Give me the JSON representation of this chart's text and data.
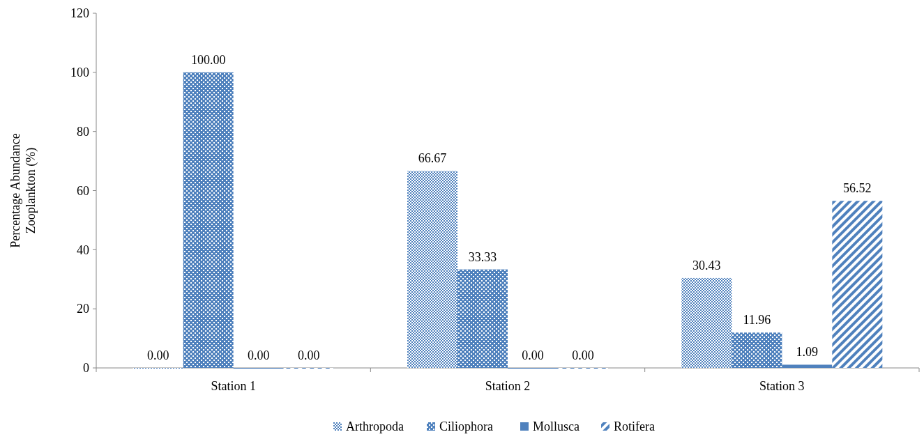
{
  "chart_data": {
    "type": "bar",
    "ylabel": "Percentage Abundance Zooplankton (%)",
    "categories": [
      "Station 1",
      "Station 2",
      "Station 3"
    ],
    "series": [
      {
        "name": "Arthropoda",
        "color": "#4f81bd",
        "values": [
          0,
          66.67,
          30.43
        ],
        "value_labels": [
          "0.00",
          "66.67",
          "30.43"
        ]
      },
      {
        "name": "Ciliophora",
        "color": "#4f81bd",
        "values": [
          100,
          33.33,
          11.96
        ],
        "value_labels": [
          "100.00",
          "33.33",
          "11.96"
        ]
      },
      {
        "name": "Mollusca",
        "color": "#4f81bd",
        "values": [
          0,
          0,
          1.09
        ],
        "value_labels": [
          "0.00",
          "0.00",
          "1.09"
        ]
      },
      {
        "name": "Rotifera",
        "color": "#4f81bd",
        "values": [
          0,
          0,
          56.52
        ],
        "value_labels": [
          "0.00",
          "0.00",
          "56.52"
        ]
      }
    ],
    "ylim": [
      0,
      120
    ],
    "yticks": [
      0,
      20,
      40,
      60,
      80,
      100,
      120
    ],
    "grid": false,
    "legend": "bottom"
  }
}
